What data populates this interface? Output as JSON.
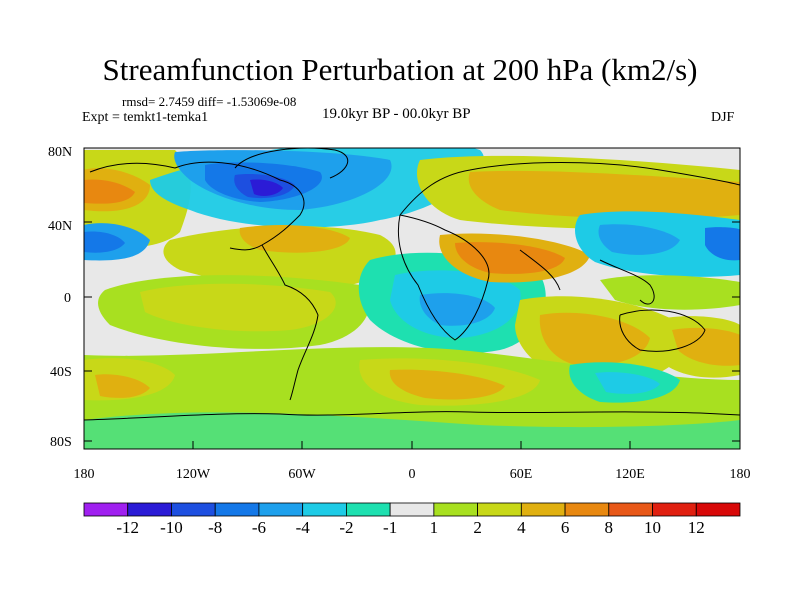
{
  "title": "Streamfunction Perturbation at 200 hPa (km2/s)",
  "stats": "rmsd= 2.7459 diff= -1.53069e-08",
  "experiment": "Expt = temkt1-temka1",
  "period": "19.0kyr BP - 00.0kyr BP",
  "season": "DJF",
  "axes": {
    "y_ticks": [
      "80N",
      "40N",
      "0",
      "40S",
      "80S"
    ],
    "x_ticks": [
      "180",
      "120W",
      "60W",
      "0",
      "60E",
      "120E",
      "180"
    ]
  },
  "colorbar": {
    "labels": [
      "-12",
      "-10",
      "-8",
      "-6",
      "-4",
      "-2",
      "-1",
      "1",
      "2",
      "4",
      "6",
      "8",
      "10",
      "12"
    ],
    "colors": [
      "#a020f0",
      "#2b1bd6",
      "#1d4fe0",
      "#1478e8",
      "#1ea0ec",
      "#1ecbe6",
      "#1ee0b0",
      "#e8e8e8",
      "#a8e020",
      "#c8d818",
      "#e0b010",
      "#e88810",
      "#e85818",
      "#e02010",
      "#d80808"
    ]
  }
}
